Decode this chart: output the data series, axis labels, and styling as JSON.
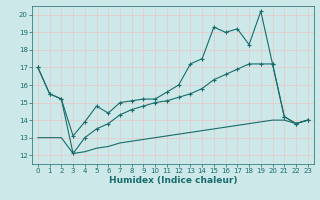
{
  "background_color": "#cce8e8",
  "grid_color": "#b0d4d4",
  "line_color": "#1a6b6b",
  "xlabel": "Humidex (Indice chaleur)",
  "xlim": [
    -0.5,
    23.5
  ],
  "ylim": [
    11.5,
    20.5
  ],
  "xticks": [
    0,
    1,
    2,
    3,
    4,
    5,
    6,
    7,
    8,
    9,
    10,
    11,
    12,
    13,
    14,
    15,
    16,
    17,
    18,
    19,
    20,
    21,
    22,
    23
  ],
  "yticks": [
    12,
    13,
    14,
    15,
    16,
    17,
    18,
    19,
    20
  ],
  "line1_x": [
    0,
    1,
    2,
    3,
    4,
    5,
    6,
    7,
    8,
    9,
    10,
    11,
    12,
    13,
    14,
    15,
    16,
    17,
    18,
    19,
    20,
    21,
    22,
    23
  ],
  "line1_y": [
    17.0,
    15.5,
    15.2,
    13.1,
    13.9,
    14.8,
    14.4,
    15.0,
    15.1,
    15.2,
    15.2,
    15.6,
    16.0,
    17.2,
    17.5,
    19.3,
    19.0,
    19.2,
    18.3,
    20.2,
    17.2,
    14.2,
    13.8,
    14.0
  ],
  "line2_x": [
    0,
    1,
    2,
    3,
    4,
    5,
    6,
    7,
    8,
    9,
    10,
    11,
    12,
    13,
    14,
    15,
    16,
    17,
    18,
    19,
    20,
    21,
    22,
    23
  ],
  "line2_y": [
    17.0,
    15.5,
    15.2,
    12.1,
    13.0,
    13.5,
    13.8,
    14.3,
    14.6,
    14.8,
    15.0,
    15.1,
    15.3,
    15.5,
    15.8,
    16.3,
    16.6,
    16.9,
    17.2,
    17.2,
    17.2,
    14.2,
    13.8,
    14.0
  ],
  "line3_x": [
    0,
    1,
    2,
    3,
    4,
    5,
    6,
    7,
    8,
    9,
    10,
    11,
    12,
    13,
    14,
    15,
    16,
    17,
    18,
    19,
    20,
    21,
    22,
    23
  ],
  "line3_y": [
    13.0,
    13.0,
    13.0,
    12.1,
    12.2,
    12.4,
    12.5,
    12.7,
    12.8,
    12.9,
    13.0,
    13.1,
    13.2,
    13.3,
    13.4,
    13.5,
    13.6,
    13.7,
    13.8,
    13.9,
    14.0,
    14.0,
    13.8,
    14.0
  ]
}
